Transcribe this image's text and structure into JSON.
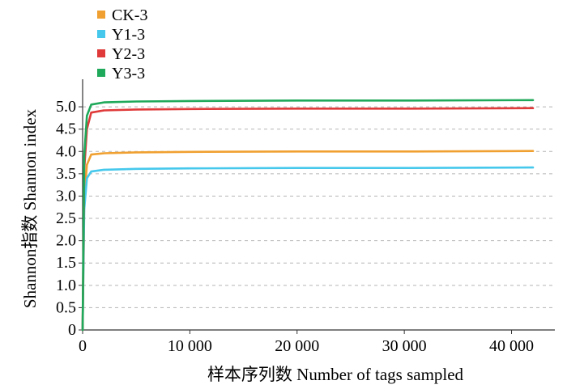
{
  "chart_data": {
    "type": "line",
    "xlabel": "样本序列数 Number of tags sampled",
    "ylabel": "Shannon指数 Shannon index",
    "xlim": [
      0,
      42000
    ],
    "ylim": [
      0,
      5.4
    ],
    "x_ticks": [
      0,
      10000,
      20000,
      30000,
      40000
    ],
    "x_tick_labels": [
      "0",
      "10 000",
      "20 000",
      "30 000",
      "40 000"
    ],
    "y_ticks": [
      0,
      0.5,
      1.0,
      1.5,
      2.0,
      2.5,
      3.0,
      3.5,
      4.0,
      4.5,
      5.0
    ],
    "y_tick_labels": [
      "0",
      "0.5",
      "1.0",
      "1.5",
      "2.0",
      "2.5",
      "3.0",
      "3.5",
      "4.0",
      "4.5",
      "5.0"
    ],
    "grid": "horizontal dashed",
    "legend_position": "top-left",
    "series": [
      {
        "name": "CK-3",
        "color": "#f0a030",
        "points": [
          [
            0,
            0
          ],
          [
            150,
            2.9
          ],
          [
            400,
            3.7
          ],
          [
            800,
            3.93
          ],
          [
            2000,
            3.96
          ],
          [
            5000,
            3.98
          ],
          [
            10000,
            3.99
          ],
          [
            20000,
            4.0
          ],
          [
            30000,
            4.0
          ],
          [
            42000,
            4.01
          ]
        ]
      },
      {
        "name": "Y1-3",
        "color": "#45c8ec",
        "points": [
          [
            0,
            0
          ],
          [
            150,
            2.7
          ],
          [
            400,
            3.4
          ],
          [
            800,
            3.55
          ],
          [
            2000,
            3.59
          ],
          [
            5000,
            3.61
          ],
          [
            10000,
            3.62
          ],
          [
            20000,
            3.63
          ],
          [
            30000,
            3.63
          ],
          [
            42000,
            3.64
          ]
        ]
      },
      {
        "name": "Y2-3",
        "color": "#e03a3a",
        "points": [
          [
            0,
            0
          ],
          [
            150,
            3.6
          ],
          [
            400,
            4.5
          ],
          [
            800,
            4.87
          ],
          [
            2000,
            4.92
          ],
          [
            5000,
            4.94
          ],
          [
            10000,
            4.95
          ],
          [
            20000,
            4.96
          ],
          [
            30000,
            4.96
          ],
          [
            42000,
            4.97
          ]
        ]
      },
      {
        "name": "Y3-3",
        "color": "#1fa95a",
        "points": [
          [
            0,
            0
          ],
          [
            150,
            3.9
          ],
          [
            400,
            4.8
          ],
          [
            800,
            5.05
          ],
          [
            2000,
            5.1
          ],
          [
            5000,
            5.12
          ],
          [
            10000,
            5.13
          ],
          [
            20000,
            5.14
          ],
          [
            30000,
            5.14
          ],
          [
            42000,
            5.15
          ]
        ]
      }
    ]
  }
}
